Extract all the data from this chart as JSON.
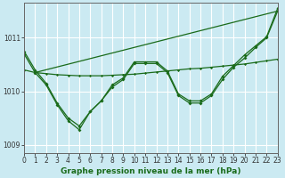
{
  "xlabel": "Graphe pression niveau de la mer (hPa)",
  "xlim": [
    0,
    23
  ],
  "ylim": [
    1008.85,
    1011.65
  ],
  "yticks": [
    1009,
    1010,
    1011
  ],
  "xticks": [
    0,
    1,
    2,
    3,
    4,
    5,
    6,
    7,
    8,
    9,
    10,
    11,
    12,
    13,
    14,
    15,
    16,
    17,
    18,
    19,
    20,
    21,
    22,
    23
  ],
  "bg_color": "#cbeaf2",
  "grid_color": "#ffffff",
  "line_color": "#1a6b1a",
  "marker_size": 2.0,
  "line_width": 0.9,
  "tick_fontsize": 5.5,
  "label_fontsize": 6.5,
  "y_zigzag": [
    1010.75,
    1010.4,
    1010.15,
    1009.78,
    1009.5,
    1009.35,
    1009.62,
    1009.82,
    1010.12,
    1010.25,
    1010.55,
    1010.55,
    1010.55,
    1010.38,
    1009.95,
    1009.82,
    1009.82,
    1009.95,
    1010.28,
    1010.48,
    1010.68,
    1010.85,
    1011.02,
    1011.55
  ],
  "y_zigzag2": [
    1010.7,
    1010.35,
    1010.12,
    1009.75,
    1009.45,
    1009.28,
    1009.62,
    1009.82,
    1010.08,
    1010.22,
    1010.52,
    1010.52,
    1010.52,
    1010.35,
    1009.92,
    1009.78,
    1009.78,
    1009.92,
    1010.22,
    1010.45,
    1010.62,
    1010.82,
    1011.0,
    1011.5
  ],
  "y_flat": [
    1010.4,
    1010.35,
    1010.33,
    1010.31,
    1010.3,
    1010.29,
    1010.29,
    1010.29,
    1010.3,
    1010.31,
    1010.32,
    1010.34,
    1010.36,
    1010.38,
    1010.4,
    1010.42,
    1010.43,
    1010.45,
    1010.47,
    1010.49,
    1010.51,
    1010.54,
    1010.57,
    1010.6
  ],
  "y_trend_x": [
    1,
    23
  ],
  "y_trend_y": [
    1010.35,
    1011.5
  ]
}
